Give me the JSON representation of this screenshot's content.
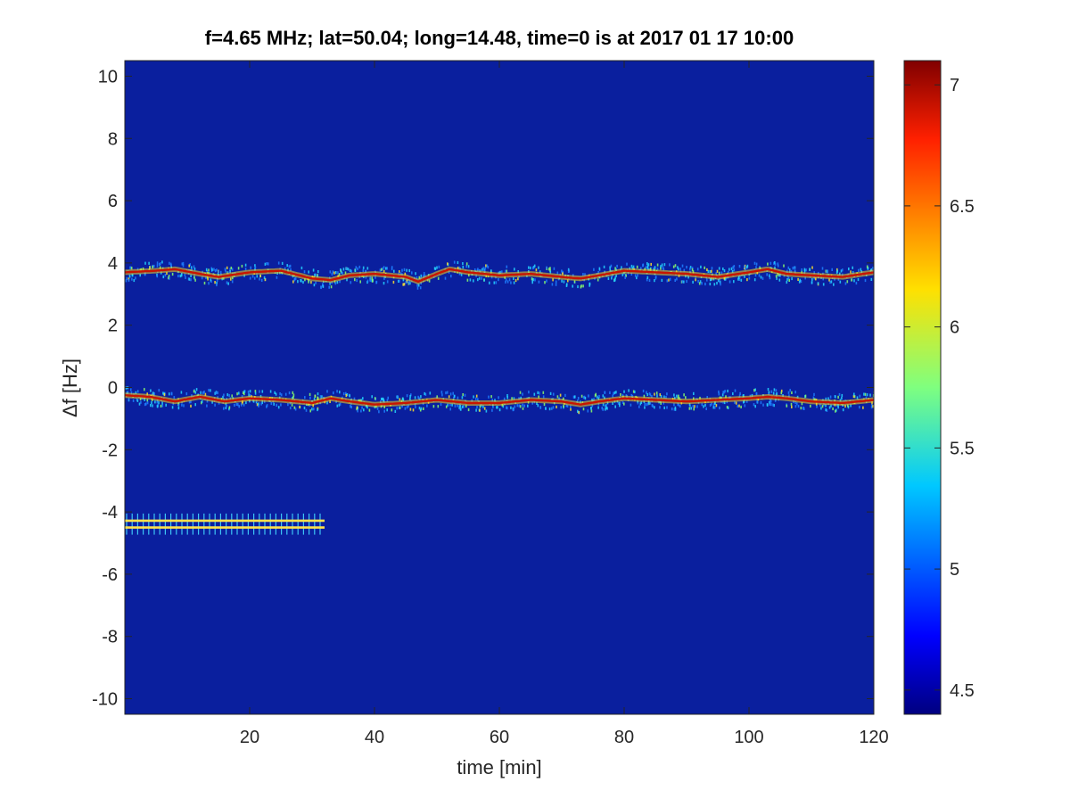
{
  "chart_data": {
    "type": "heatmap",
    "title": "f=4.65 MHz;  lat=50.04; long=14.48, time=0 is at 2017 01 17 10:00",
    "xlabel": "time [min]",
    "ylabel": "Δf [Hz]",
    "xlim": [
      0,
      120
    ],
    "ylim": [
      -10.5,
      10.5
    ],
    "x_ticks": [
      20,
      40,
      60,
      80,
      100,
      120
    ],
    "x_tick_labels": [
      "20",
      "40",
      "60",
      "80",
      "100",
      "120"
    ],
    "y_ticks": [
      10,
      8,
      6,
      4,
      2,
      0,
      -2,
      -4,
      -6,
      -8,
      -10
    ],
    "y_tick_labels": [
      "10",
      "8",
      "6",
      "4",
      "2",
      "0",
      "-2",
      "-4",
      "-6",
      "-8",
      "-10"
    ],
    "colormap": "jet",
    "background_color": "#0a1f9e",
    "colorbar": {
      "range": [
        4.4,
        7.1
      ],
      "ticks": [
        4.5,
        5,
        5.5,
        6,
        6.5,
        7
      ],
      "tick_labels": [
        "4.5",
        "5",
        "5.5",
        "6",
        "6.5",
        "7"
      ],
      "placement": "right"
    },
    "traces": [
      {
        "time": [
          0,
          5,
          8,
          12,
          15,
          20,
          25,
          28,
          30,
          33,
          36,
          40,
          45,
          47,
          50,
          52,
          55,
          60,
          65,
          70,
          73,
          76,
          80,
          85,
          90,
          95,
          100,
          103,
          106,
          110,
          115,
          120
        ],
        "df": [
          3.7,
          3.75,
          3.8,
          3.65,
          3.55,
          3.7,
          3.75,
          3.6,
          3.5,
          3.45,
          3.6,
          3.65,
          3.55,
          3.4,
          3.65,
          3.8,
          3.7,
          3.6,
          3.65,
          3.55,
          3.5,
          3.6,
          3.75,
          3.7,
          3.65,
          3.55,
          3.7,
          3.8,
          3.65,
          3.6,
          3.55,
          3.7
        ]
      },
      {
        "time": [
          0,
          4,
          8,
          12,
          16,
          20,
          25,
          30,
          33,
          36,
          40,
          45,
          50,
          55,
          60,
          65,
          70,
          73,
          76,
          80,
          85,
          90,
          95,
          100,
          103,
          106,
          110,
          115,
          120
        ],
        "df": [
          -0.25,
          -0.3,
          -0.45,
          -0.3,
          -0.45,
          -0.35,
          -0.4,
          -0.5,
          -0.35,
          -0.45,
          -0.55,
          -0.5,
          -0.4,
          -0.5,
          -0.5,
          -0.4,
          -0.45,
          -0.55,
          -0.45,
          -0.35,
          -0.4,
          -0.45,
          -0.4,
          -0.35,
          -0.3,
          -0.35,
          -0.45,
          -0.5,
          -0.4
        ]
      }
    ],
    "comb_segment": {
      "time_start": 0,
      "time_end": 32,
      "df_upper": -4.28,
      "df_lower": -4.5
    }
  }
}
